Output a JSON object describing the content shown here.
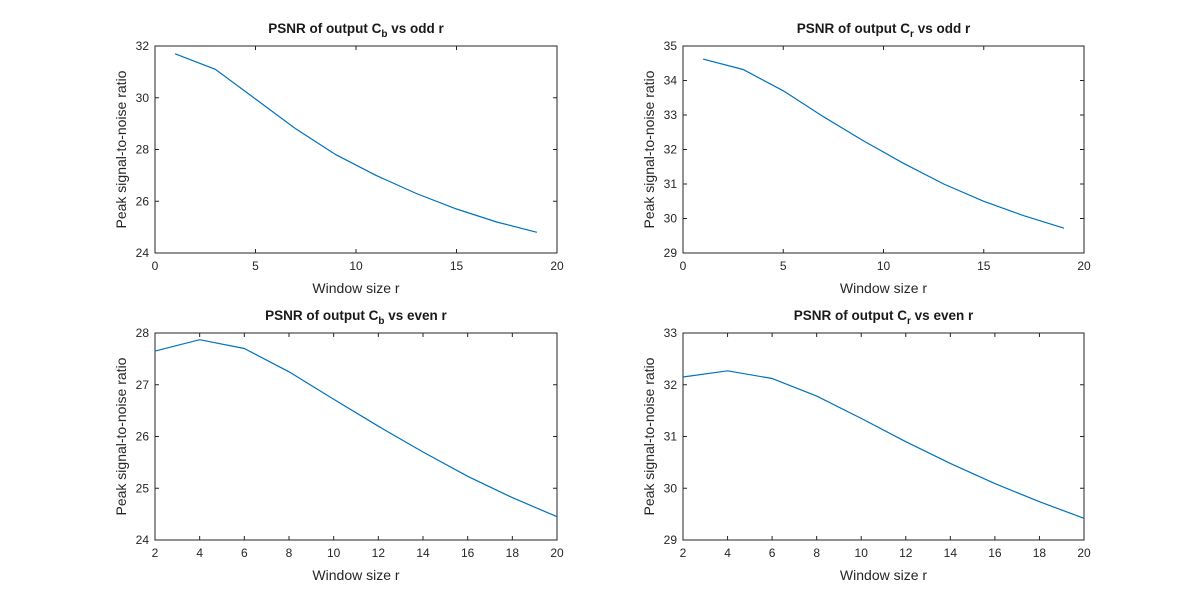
{
  "chart_data": [
    {
      "type": "line",
      "title_main": "PSNR of output C",
      "title_sub": "b",
      "title_tail": " vs odd r",
      "xlabel": "Window size r",
      "ylabel": "Peak signal-to-noise ratio",
      "xlim": [
        0,
        20
      ],
      "ylim": [
        24,
        32
      ],
      "xticks": [
        0,
        5,
        10,
        15,
        20
      ],
      "yticks": [
        24,
        26,
        28,
        30,
        32
      ],
      "x": [
        1,
        3,
        5,
        7,
        9,
        11,
        13,
        15,
        17,
        19
      ],
      "y": [
        31.7,
        31.1,
        29.95,
        28.8,
        27.8,
        27.0,
        26.3,
        25.7,
        25.2,
        24.8
      ],
      "color": "#0072BD"
    },
    {
      "type": "line",
      "title_main": "PSNR of output C",
      "title_sub": "r",
      "title_tail": " vs odd r",
      "xlabel": "Window size r",
      "ylabel": "Peak signal-to-noise ratio",
      "xlim": [
        0,
        20
      ],
      "ylim": [
        29,
        35
      ],
      "xticks": [
        0,
        5,
        10,
        15,
        20
      ],
      "yticks": [
        29,
        30,
        31,
        32,
        33,
        34,
        35
      ],
      "x": [
        1,
        3,
        5,
        7,
        9,
        11,
        13,
        15,
        17,
        19
      ],
      "y": [
        34.62,
        34.32,
        33.7,
        32.95,
        32.25,
        31.6,
        31.0,
        30.5,
        30.08,
        29.72
      ],
      "color": "#0072BD"
    },
    {
      "type": "line",
      "title_main": "PSNR of output C",
      "title_sub": "b",
      "title_tail": " vs even r",
      "xlabel": "Window size r",
      "ylabel": "Peak signal-to-noise ratio",
      "xlim": [
        2,
        20
      ],
      "ylim": [
        24,
        28
      ],
      "xticks": [
        2,
        4,
        6,
        8,
        10,
        12,
        14,
        16,
        18,
        20
      ],
      "yticks": [
        24,
        25,
        26,
        27,
        28
      ],
      "x": [
        2,
        4,
        6,
        8,
        10,
        12,
        14,
        16,
        18,
        20
      ],
      "y": [
        27.65,
        27.87,
        27.7,
        27.25,
        26.72,
        26.2,
        25.7,
        25.23,
        24.82,
        24.45
      ],
      "color": "#0072BD"
    },
    {
      "type": "line",
      "title_main": "PSNR of output C",
      "title_sub": "r",
      "title_tail": " vs even r",
      "xlabel": "Window size r",
      "ylabel": "Peak signal-to-noise ratio",
      "xlim": [
        2,
        20
      ],
      "ylim": [
        29,
        33
      ],
      "xticks": [
        2,
        4,
        6,
        8,
        10,
        12,
        14,
        16,
        18,
        20
      ],
      "yticks": [
        29,
        30,
        31,
        32,
        33
      ],
      "x": [
        2,
        4,
        6,
        8,
        10,
        12,
        14,
        16,
        18,
        20
      ],
      "y": [
        32.15,
        32.27,
        32.12,
        31.78,
        31.35,
        30.9,
        30.48,
        30.09,
        29.74,
        29.42
      ],
      "color": "#0072BD"
    }
  ]
}
